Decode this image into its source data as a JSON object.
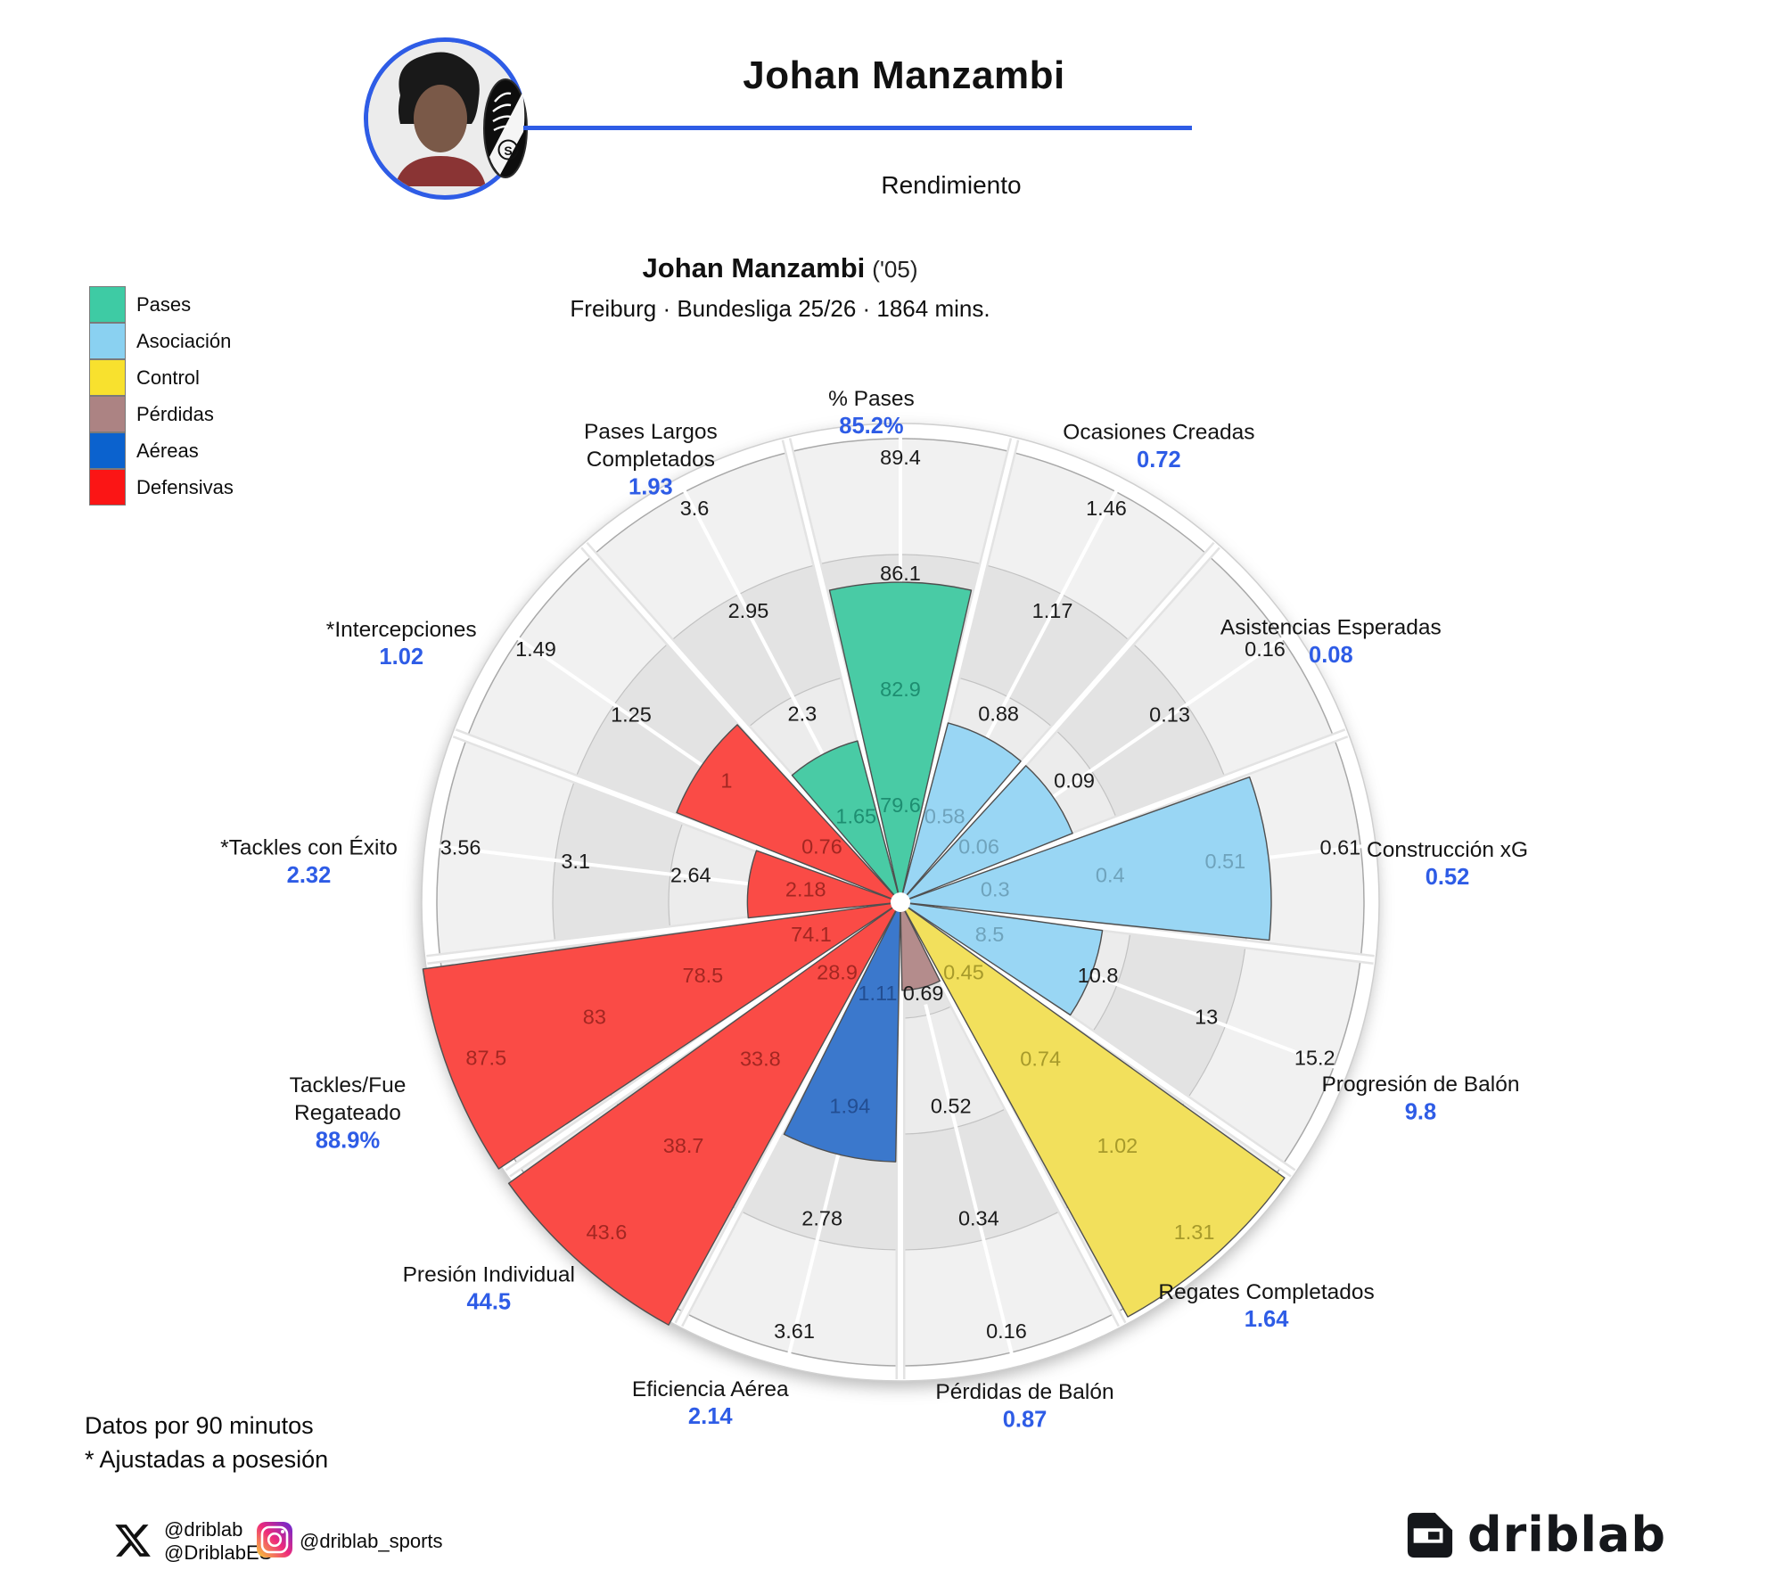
{
  "header": {
    "title": "Johan Manzambi",
    "section": "Rendimiento"
  },
  "player_card": {
    "name": "Johan Manzambi",
    "birth_year_tag": "('05)",
    "meta": "Freiburg · Bundesliga 25/26 · 1864 mins."
  },
  "legend": {
    "items": [
      {
        "label": "Pases",
        "color": "#3ecba4"
      },
      {
        "label": "Asociación",
        "color": "#8ad1f1"
      },
      {
        "label": "Control",
        "color": "#f8e12e"
      },
      {
        "label": "Pérdidas",
        "color": "#ac8383"
      },
      {
        "label": "Aéreas",
        "color": "#0b62ce"
      },
      {
        "label": "Defensivas",
        "color": "#fb1515"
      }
    ]
  },
  "chart_data": {
    "type": "polar_bar",
    "title": "Johan Manzambi ('05)",
    "subtitle": "Freiburg · Bundesliga 25/26 · 1864 mins.",
    "rings_per_sector": 4,
    "legend_position": "top-left",
    "value_color": "#2e5ce6",
    "categories": {
      "pases": {
        "bar": "#49cba5",
        "label": "#1e8e71"
      },
      "asociacion": {
        "bar": "#99d6f4",
        "label": "#6fa3bc"
      },
      "control": {
        "bar": "#f2e05c",
        "label": "#a79a2b"
      },
      "perdidas": {
        "bar": "#b48c8c",
        "label": "#7d5c5c"
      },
      "aereas": {
        "bar": "#3b78cc",
        "label": "#234e92"
      },
      "defensivas": {
        "bar": "#fa4b46",
        "label": "#a32722"
      }
    },
    "sectors": [
      {
        "name_lines": [
          "% Pases"
        ],
        "value_display": "85.2%",
        "value": 85.2,
        "category": "pases",
        "ring_labels": [
          "79.6",
          "82.9",
          "86.1",
          "89.4"
        ],
        "frac": 0.69
      },
      {
        "name_lines": [
          "Ocasiones Creadas"
        ],
        "value_display": "0.72",
        "value": 0.72,
        "category": "asociacion",
        "ring_labels": [
          "0.58",
          "0.88",
          "1.17",
          "1.46"
        ],
        "frac": 0.4
      },
      {
        "name_lines": [
          "Asistencias Esperadas"
        ],
        "value_display": "0.08",
        "value": 0.08,
        "category": "asociacion",
        "ring_labels": [
          "0.06",
          "0.09",
          "0.13",
          "0.16"
        ],
        "frac": 0.4
      },
      {
        "name_lines": [
          "Construcción xG"
        ],
        "value_display": "0.52",
        "value": 0.52,
        "category": "asociacion",
        "ring_labels": [
          "0.3",
          "0.4",
          "0.51",
          "0.61"
        ],
        "frac": 0.8
      },
      {
        "name_lines": [
          "Progresión de Balón"
        ],
        "value_display": "9.8",
        "value": 9.8,
        "category": "asociacion",
        "ring_labels": [
          "8.5",
          "10.8",
          "13",
          "15.2"
        ],
        "frac": 0.44
      },
      {
        "name_lines": [
          "Regates Completados"
        ],
        "value_display": "1.64",
        "value": 1.64,
        "category": "control",
        "ring_labels": [
          "0.45",
          "0.74",
          "1.02",
          "1.31"
        ],
        "frac": 1.02
      },
      {
        "name_lines": [
          "Pérdidas de Balón"
        ],
        "value_display": "0.87",
        "value": 0.87,
        "category": "perdidas",
        "ring_labels": [
          "0.69",
          "0.52",
          "0.34",
          "0.16"
        ],
        "frac": 0.19
      },
      {
        "name_lines": [
          "Eficiencia Aérea"
        ],
        "value_display": "2.14",
        "value": 2.14,
        "category": "aereas",
        "ring_labels": [
          "1.11",
          "1.94",
          "2.78",
          "3.61"
        ],
        "frac": 0.56
      },
      {
        "name_lines": [
          "Presión Individual"
        ],
        "value_display": "44.5",
        "value": 44.5,
        "category": "defensivas",
        "ring_labels": [
          "28.9",
          "33.8",
          "38.7",
          "43.6"
        ],
        "frac": 1.04
      },
      {
        "name_lines": [
          "Tackles/Fue",
          "Regateado"
        ],
        "value_display": "88.9%",
        "value": 88.9,
        "category": "defensivas",
        "ring_labels": [
          "74.1",
          "78.5",
          "83",
          "87.5"
        ],
        "frac": 1.04
      },
      {
        "name_lines": [
          "*Tackles con Éxito"
        ],
        "value_display": "2.32",
        "value": 2.32,
        "category": "defensivas",
        "ring_labels": [
          "2.18",
          "2.64",
          "3.1",
          "3.56"
        ],
        "frac": 0.33
      },
      {
        "name_lines": [
          "*Intercepciones"
        ],
        "value_display": "1.02",
        "value": 1.02,
        "category": "defensivas",
        "ring_labels": [
          "0.76",
          "1",
          "1.25",
          "1.49"
        ],
        "frac": 0.52
      },
      {
        "name_lines": [
          "Pases Largos",
          "Completados"
        ],
        "value_display": "1.93",
        "value": 1.93,
        "category": "pases",
        "ring_labels": [
          "1.65",
          "2.3",
          "2.95",
          "3.6"
        ],
        "frac": 0.36
      }
    ]
  },
  "footnotes": [
    "Datos por 90 minutos",
    "* Ajustadas a posesión"
  ],
  "social": {
    "x_handle_1": "@driblab",
    "x_handle_2": "@DriblabES",
    "instagram_handle": "@driblab_sports"
  },
  "branding": {
    "wordmark": "driblab"
  },
  "accent_blue": "#2e5ce6"
}
